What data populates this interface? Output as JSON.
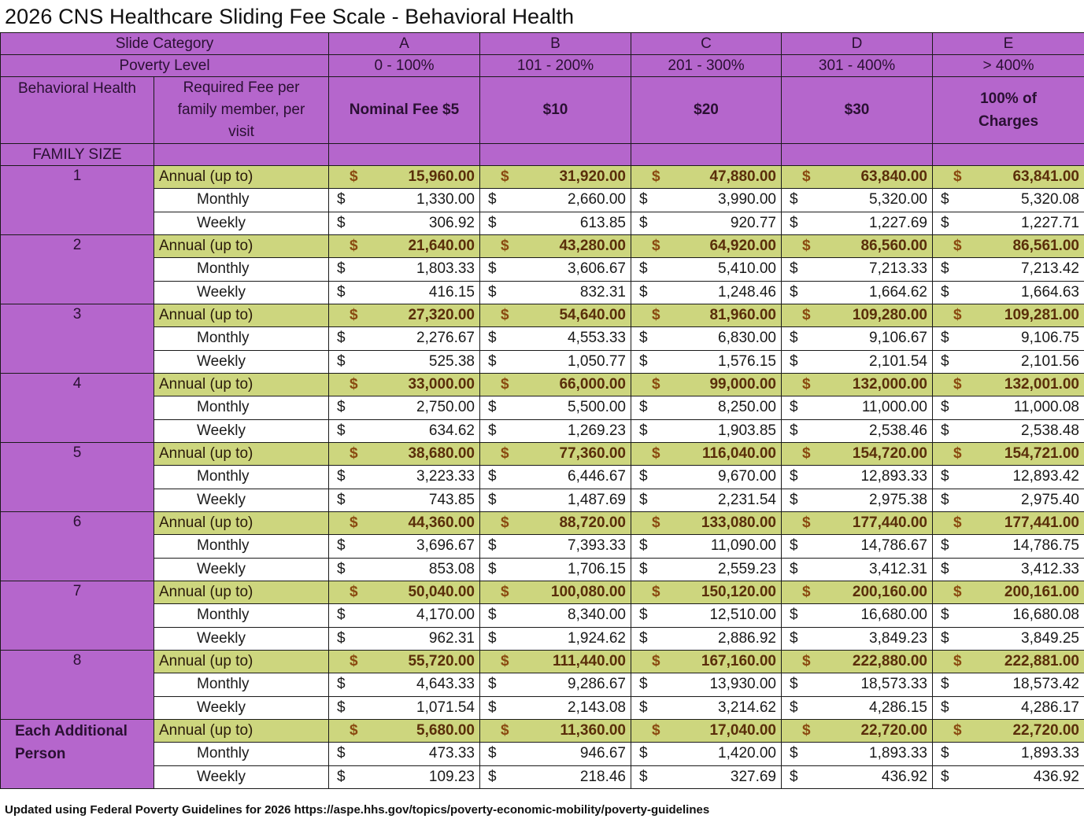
{
  "title": "2026 CNS Healthcare Sliding Fee Scale - Behavioral Health",
  "header": {
    "slide_category_label": "Slide Category",
    "poverty_level_label": "Poverty Level",
    "behavioral_health_label": "Behavioral Health",
    "required_fee_label": "Required Fee per family member, per visit",
    "family_size_label": "FAMILY SIZE",
    "categories": [
      "A",
      "B",
      "C",
      "D",
      "E"
    ],
    "poverty_levels": [
      "0 - 100%",
      "101 - 200%",
      "201 - 300%",
      "301 - 400%",
      "> 400%"
    ],
    "fees": [
      "Nominal Fee $5",
      "$10",
      "$20",
      "$30",
      "100% of Charges"
    ]
  },
  "row_labels": {
    "annual": "Annual  (up to)",
    "monthly": "Monthly",
    "weekly": "Weekly",
    "currency": "$"
  },
  "groups": [
    {
      "family_size": "1",
      "annual": [
        "15,960.00",
        "31,920.00",
        "47,880.00",
        "63,840.00",
        "63,841.00"
      ],
      "monthly": [
        "1,330.00",
        "2,660.00",
        "3,990.00",
        "5,320.00",
        "5,320.08"
      ],
      "weekly": [
        "306.92",
        "613.85",
        "920.77",
        "1,227.69",
        "1,227.71"
      ]
    },
    {
      "family_size": "2",
      "annual": [
        "21,640.00",
        "43,280.00",
        "64,920.00",
        "86,560.00",
        "86,561.00"
      ],
      "monthly": [
        "1,803.33",
        "3,606.67",
        "5,410.00",
        "7,213.33",
        "7,213.42"
      ],
      "weekly": [
        "416.15",
        "832.31",
        "1,248.46",
        "1,664.62",
        "1,664.63"
      ]
    },
    {
      "family_size": "3",
      "annual": [
        "27,320.00",
        "54,640.00",
        "81,960.00",
        "109,280.00",
        "109,281.00"
      ],
      "monthly": [
        "2,276.67",
        "4,553.33",
        "6,830.00",
        "9,106.67",
        "9,106.75"
      ],
      "weekly": [
        "525.38",
        "1,050.77",
        "1,576.15",
        "2,101.54",
        "2,101.56"
      ]
    },
    {
      "family_size": "4",
      "annual": [
        "33,000.00",
        "66,000.00",
        "99,000.00",
        "132,000.00",
        "132,001.00"
      ],
      "monthly": [
        "2,750.00",
        "5,500.00",
        "8,250.00",
        "11,000.00",
        "11,000.08"
      ],
      "weekly": [
        "634.62",
        "1,269.23",
        "1,903.85",
        "2,538.46",
        "2,538.48"
      ]
    },
    {
      "family_size": "5",
      "annual": [
        "38,680.00",
        "77,360.00",
        "116,040.00",
        "154,720.00",
        "154,721.00"
      ],
      "monthly": [
        "3,223.33",
        "6,446.67",
        "9,670.00",
        "12,893.33",
        "12,893.42"
      ],
      "weekly": [
        "743.85",
        "1,487.69",
        "2,231.54",
        "2,975.38",
        "2,975.40"
      ]
    },
    {
      "family_size": "6",
      "annual": [
        "44,360.00",
        "88,720.00",
        "133,080.00",
        "177,440.00",
        "177,441.00"
      ],
      "monthly": [
        "3,696.67",
        "7,393.33",
        "11,090.00",
        "14,786.67",
        "14,786.75"
      ],
      "weekly": [
        "853.08",
        "1,706.15",
        "2,559.23",
        "3,412.31",
        "3,412.33"
      ]
    },
    {
      "family_size": "7",
      "annual": [
        "50,040.00",
        "100,080.00",
        "150,120.00",
        "200,160.00",
        "200,161.00"
      ],
      "monthly": [
        "4,170.00",
        "8,340.00",
        "12,510.00",
        "16,680.00",
        "16,680.08"
      ],
      "weekly": [
        "962.31",
        "1,924.62",
        "2,886.92",
        "3,849.23",
        "3,849.25"
      ]
    },
    {
      "family_size": "8",
      "annual": [
        "55,720.00",
        "111,440.00",
        "167,160.00",
        "222,880.00",
        "222,881.00"
      ],
      "monthly": [
        "4,643.33",
        "9,286.67",
        "13,930.00",
        "18,573.33",
        "18,573.42"
      ],
      "weekly": [
        "1,071.54",
        "2,143.08",
        "3,214.62",
        "4,286.15",
        "4,286.17"
      ]
    },
    {
      "family_size": "Each Additional Person",
      "annual": [
        "5,680.00",
        "11,360.00",
        "17,040.00",
        "22,720.00",
        "22,720.00"
      ],
      "monthly": [
        "473.33",
        "946.67",
        "1,420.00",
        "1,893.33",
        "1,893.33"
      ],
      "weekly": [
        "109.23",
        "218.46",
        "327.69",
        "436.92",
        "436.92"
      ]
    }
  ],
  "footer": "Updated using Federal Poverty Guidelines for 2026  https://aspe.hhs.gov/topics/poverty-economic-mobility/poverty-guidelines",
  "colors": {
    "header_purple": "#b566cc",
    "annual_green": "#cdd67e",
    "annual_text": "#5a2e0a"
  }
}
